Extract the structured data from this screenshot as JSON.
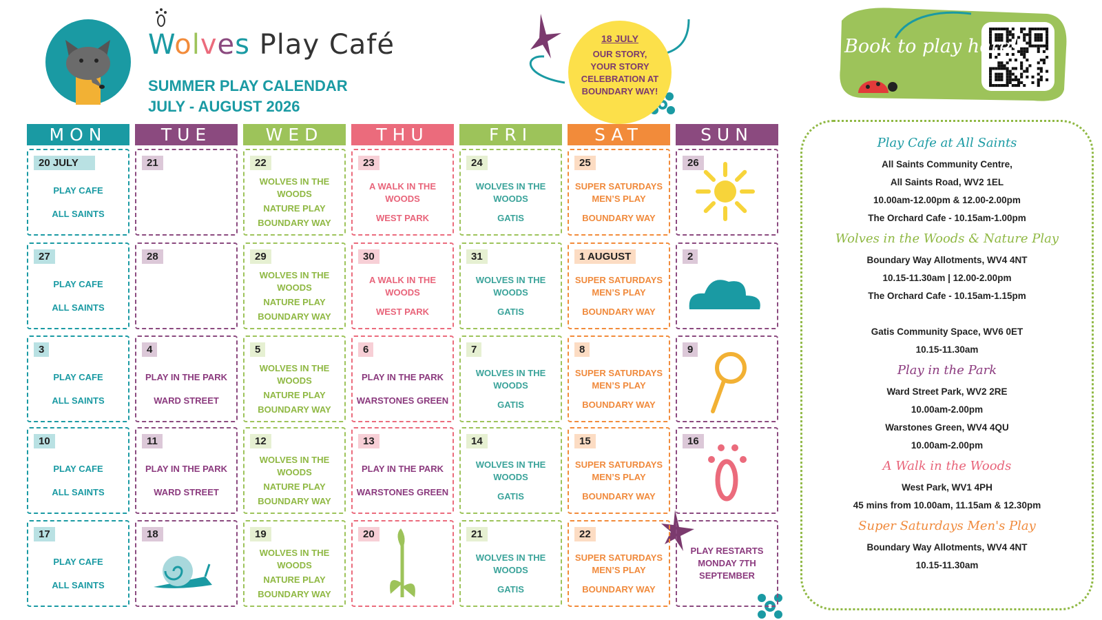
{
  "header": {
    "title": "Wolves Play Café",
    "subtitle": "SUMMER PLAY CALENDAR",
    "dates": "JULY - AUGUST 2026"
  },
  "callout": {
    "date": "18 JULY",
    "text": "OUR STORY, YOUR STORY CELEBRATION AT BOUNDARY WAY!"
  },
  "booking": {
    "text": "Book to play here!"
  },
  "weekdays": [
    {
      "label": "MON",
      "color": "#1a9aa3",
      "tint": "#b9e1e3",
      "text": "#1a9aa3"
    },
    {
      "label": "TUE",
      "color": "#8b4a7f",
      "tint": "#dcc8d8",
      "text": "#8b3a7e"
    },
    {
      "label": "WED",
      "color": "#9dc35a",
      "tint": "#e6f0d2",
      "text": "#8fb843"
    },
    {
      "label": "THU",
      "color": "#eb6b7c",
      "tint": "#f7cfd6",
      "text": "#e8647a"
    },
    {
      "label": "FRI",
      "color": "#9dc35a",
      "tint": "#e6f0d2",
      "text": "#3aa39a"
    },
    {
      "label": "SAT",
      "color": "#f28b3a",
      "tint": "#fcdcc3",
      "text": "#f08a3c"
    },
    {
      "label": "SUN",
      "color": "#8b4a7f",
      "tint": "#dcc8d8",
      "text": "#8b3a7e"
    }
  ],
  "weeks": [
    [
      {
        "day": "20 JULY",
        "lines": [
          "PLAY CAFE",
          "ALL SAINTS"
        ]
      },
      {
        "day": "21",
        "lines": []
      },
      {
        "day": "22",
        "lines": [
          "WOLVES IN THE WOODS",
          "NATURE PLAY",
          "BOUNDARY WAY"
        ]
      },
      {
        "day": "23",
        "lines": [
          "A WALK IN THE WOODS",
          "WEST PARK"
        ]
      },
      {
        "day": "24",
        "lines": [
          "WOLVES IN THE WOODS",
          "GATIS"
        ]
      },
      {
        "day": "25",
        "lines": [
          "SUPER SATURDAYS MEN’S PLAY",
          "BOUNDARY WAY"
        ]
      },
      {
        "day": "26",
        "lines": []
      }
    ],
    [
      {
        "day": "27",
        "lines": [
          "PLAY CAFE",
          "ALL SAINTS"
        ]
      },
      {
        "day": "28",
        "lines": []
      },
      {
        "day": "29",
        "lines": [
          "WOLVES IN THE WOODS",
          "NATURE PLAY",
          "BOUNDARY WAY"
        ]
      },
      {
        "day": "30",
        "lines": [
          "A WALK IN THE WOODS",
          "WEST PARK"
        ]
      },
      {
        "day": "31",
        "lines": [
          "WOLVES IN THE WOODS",
          "GATIS"
        ]
      },
      {
        "day": "1 AUGUST",
        "lines": [
          "SUPER SATURDAYS MEN’S PLAY",
          "BOUNDARY WAY"
        ]
      },
      {
        "day": "2",
        "lines": []
      }
    ],
    [
      {
        "day": "3",
        "lines": [
          "PLAY CAFE",
          "ALL SAINTS"
        ]
      },
      {
        "day": "4",
        "lines": [
          "PLAY IN THE PARK",
          "WARD STREET"
        ]
      },
      {
        "day": "5",
        "lines": [
          "WOLVES IN THE WOODS",
          "NATURE PLAY",
          "BOUNDARY WAY"
        ]
      },
      {
        "day": "6",
        "lines": [
          "PLAY IN THE PARK",
          "WARSTONES GREEN"
        ],
        "color": "#8b3a7e"
      },
      {
        "day": "7",
        "lines": [
          "WOLVES IN THE WOODS",
          "GATIS"
        ]
      },
      {
        "day": "8",
        "lines": [
          "SUPER SATURDAYS MEN’S PLAY",
          "BOUNDARY WAY"
        ]
      },
      {
        "day": "9",
        "lines": []
      }
    ],
    [
      {
        "day": "10",
        "lines": [
          "PLAY CAFE",
          "ALL SAINTS"
        ]
      },
      {
        "day": "11",
        "lines": [
          "PLAY IN THE PARK",
          "WARD STREET"
        ]
      },
      {
        "day": "12",
        "lines": [
          "WOLVES IN THE WOODS",
          "NATURE PLAY",
          "BOUNDARY WAY"
        ]
      },
      {
        "day": "13",
        "lines": [
          "PLAY IN THE PARK",
          "WARSTONES GREEN"
        ],
        "color": "#8b3a7e"
      },
      {
        "day": "14",
        "lines": [
          "WOLVES IN THE WOODS",
          "GATIS"
        ]
      },
      {
        "day": "15",
        "lines": [
          "SUPER SATURDAYS MEN’S PLAY",
          "BOUNDARY WAY"
        ]
      },
      {
        "day": "16",
        "lines": []
      }
    ],
    [
      {
        "day": "17",
        "lines": [
          "PLAY CAFE",
          "ALL SAINTS"
        ]
      },
      {
        "day": "18",
        "lines": []
      },
      {
        "day": "19",
        "lines": [
          "WOLVES IN THE WOODS",
          "NATURE PLAY",
          "BOUNDARY WAY"
        ]
      },
      {
        "day": "20",
        "lines": []
      },
      {
        "day": "21",
        "lines": [
          "WOLVES IN THE WOODS",
          "GATIS"
        ]
      },
      {
        "day": "22",
        "lines": [
          "SUPER SATURDAYS MEN’S PLAY",
          "BOUNDARY WAY"
        ]
      },
      {
        "lines": [
          "PLAY RESTARTS MONDAY 7TH SEPTEMBER"
        ]
      }
    ]
  ],
  "sidebar": [
    {
      "heading": "Play Cafe at All Saints",
      "color": "#1a9aa3",
      "lines": [
        "All Saints Community Centre,",
        "All Saints Road, WV2 1EL",
        "10.00am-12.00pm & 12.00-2.00pm",
        "The Orchard Cafe - 10.15am-1.00pm"
      ]
    },
    {
      "heading": "Wolves in the Woods & Nature Play",
      "color": "#8fb843",
      "lines": [
        "Boundary Way Allotments, WV4 4NT",
        "10.15-11.30am | 12.00-2.00pm",
        "The Orchard Cafe - 10.15am-1.15pm",
        "Gatis Community Space, WV6 0ET",
        "10.15-11.30am"
      ]
    },
    {
      "heading": "Play in the Park",
      "color": "#8b3a7e",
      "lines": [
        "Ward Street Park, WV2 2RE",
        "10.00am-2.00pm",
        "Warstones Green, WV4 4QU",
        "10.00am-2.00pm"
      ]
    },
    {
      "heading": "A Walk in the Woods",
      "color": "#e8647a",
      "lines": [
        "West Park, WV1 4PH",
        "45 mins from 10.00am, 11.15am & 12.30pm"
      ]
    },
    {
      "heading": "Super Saturdays Men's Play",
      "color": "#f08a3c",
      "lines": [
        "Boundary Way Allotments, WV4 4NT",
        "10.15-11.30am"
      ]
    }
  ]
}
